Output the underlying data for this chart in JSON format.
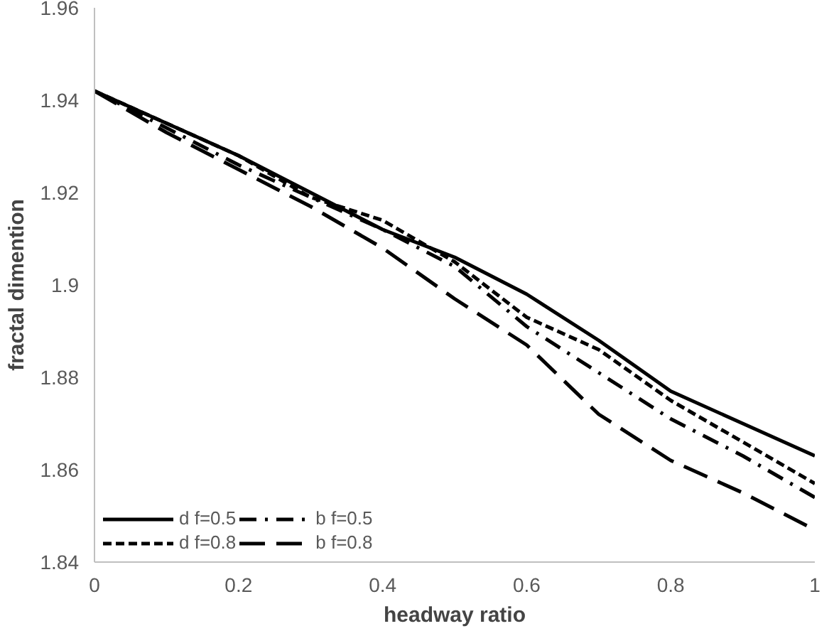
{
  "chart_data": {
    "type": "line",
    "xlabel": "headway ratio",
    "ylabel": "fractal dimention",
    "x": [
      0,
      0.1,
      0.2,
      0.3,
      0.4,
      0.5,
      0.6,
      0.7,
      0.8,
      0.9,
      1
    ],
    "series": [
      {
        "name": "d f=0.5",
        "color": "#000000",
        "line_style": "solid",
        "values": [
          1.942,
          1.935,
          1.928,
          1.92,
          1.912,
          1.906,
          1.898,
          1.888,
          1.877,
          1.87,
          1.863
        ]
      },
      {
        "name": "d f=0.8",
        "color": "#000000",
        "line_style": "dashed",
        "values": [
          1.942,
          1.935,
          1.928,
          1.919,
          1.914,
          1.905,
          1.893,
          1.886,
          1.875,
          1.866,
          1.857
        ]
      },
      {
        "name": "b f=0.5",
        "color": "#000000",
        "line_style": "dashdot",
        "values": [
          1.942,
          1.934,
          1.926,
          1.919,
          1.912,
          1.904,
          1.891,
          1.881,
          1.871,
          1.863,
          1.854
        ]
      },
      {
        "name": "b f=0.8",
        "color": "#000000",
        "line_style": "longdash",
        "values": [
          1.942,
          1.933,
          1.925,
          1.917,
          1.908,
          1.897,
          1.887,
          1.872,
          1.862,
          1.855,
          1.847
        ]
      }
    ],
    "xlim": [
      0,
      1
    ],
    "ylim": [
      1.84,
      1.96
    ],
    "xticks": [
      0,
      0.2,
      0.4,
      0.6,
      0.8,
      1
    ],
    "yticks": [
      1.84,
      1.86,
      1.88,
      {
        "value": 1.9,
        "label": "1.9"
      },
      1.92,
      1.94,
      1.96
    ],
    "grid": false,
    "legend": "bottom left",
    "marker": "none"
  }
}
